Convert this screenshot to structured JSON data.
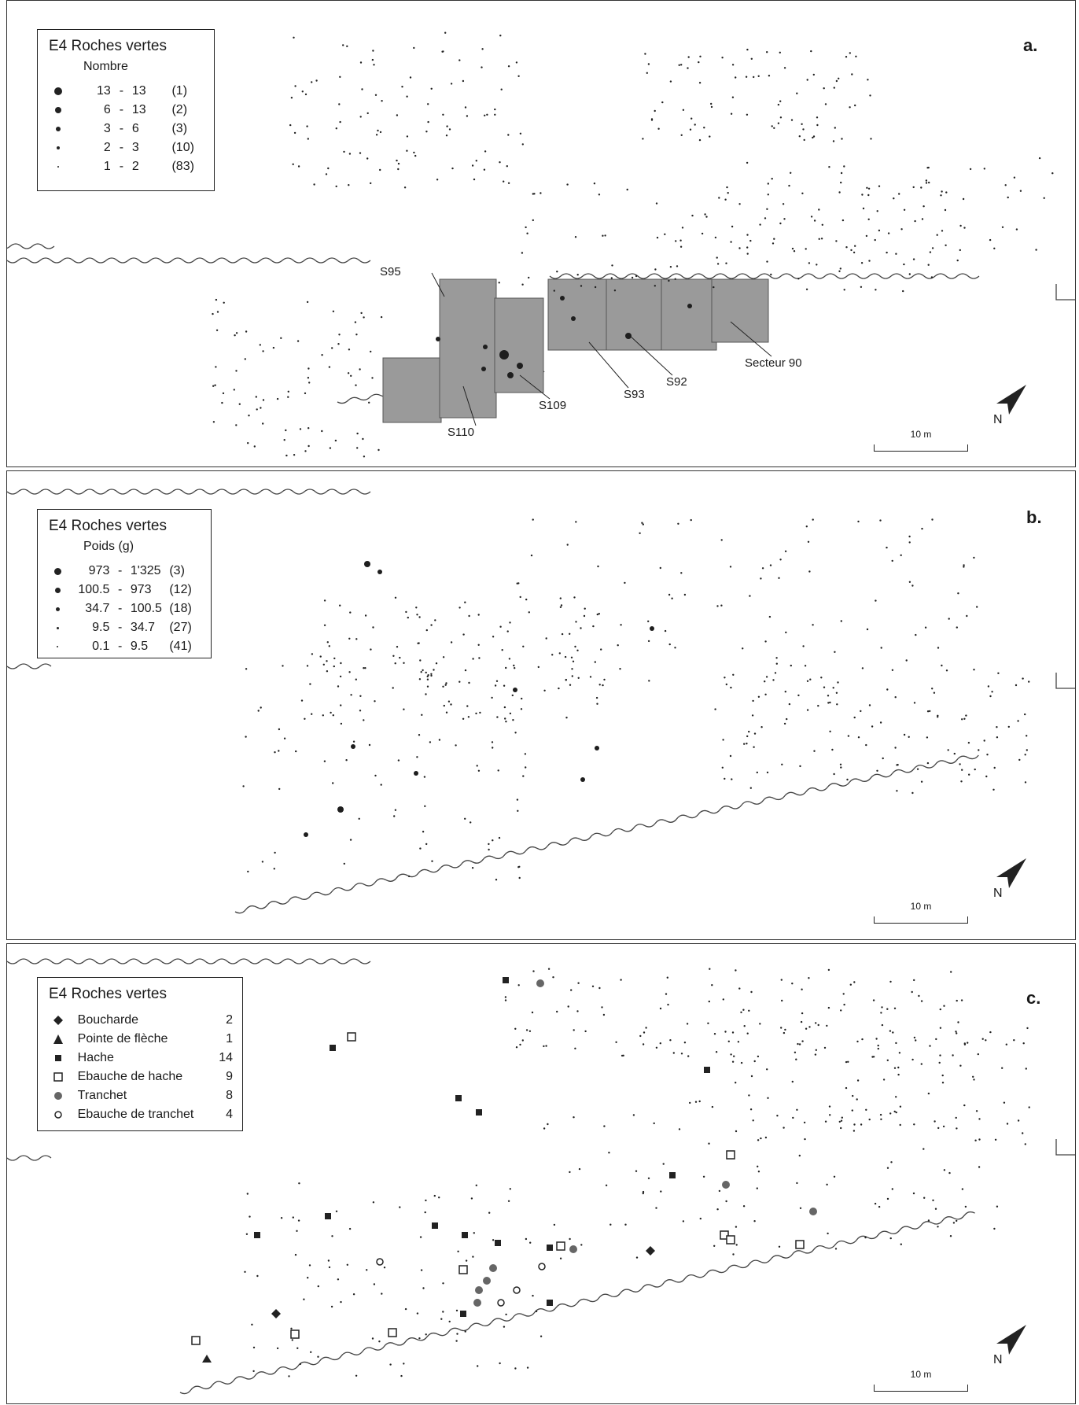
{
  "panel_a": {
    "letter": "a.",
    "legend_title": "E4 Roches vertes",
    "legend_subtitle": "Nombre",
    "classes": [
      {
        "low": "13",
        "high": "13",
        "count": "(1)"
      },
      {
        "low": "6",
        "high": "13",
        "count": "(2)"
      },
      {
        "low": "3",
        "high": "6",
        "count": "(3)"
      },
      {
        "low": "2",
        "high": "3",
        "count": "(10)"
      },
      {
        "low": "1",
        "high": "2",
        "count": "(83)"
      }
    ],
    "labels": [
      "S95",
      "S110",
      "S109",
      "S93",
      "S92",
      "Secteur 90"
    ],
    "north": "N",
    "scale": "10 m"
  },
  "panel_b": {
    "letter": "b.",
    "legend_title": "E4 Roches vertes",
    "legend_subtitle": "Poids (g)",
    "classes": [
      {
        "low": "973",
        "high": "1'325",
        "count": "(3)"
      },
      {
        "low": "100.5",
        "high": "973",
        "count": "(12)"
      },
      {
        "low": "34.7",
        "high": "100.5",
        "count": "(18)"
      },
      {
        "low": "9.5",
        "high": "34.7",
        "count": "(27)"
      },
      {
        "low": "0.1",
        "high": "9.5",
        "count": "(41)"
      }
    ],
    "north": "N",
    "scale": "10 m"
  },
  "panel_c": {
    "letter": "c.",
    "legend_title": "E4 Roches vertes",
    "items": [
      {
        "label": "Boucharde",
        "count": "2",
        "symbol": "diamond"
      },
      {
        "label": "Pointe de flèche",
        "count": "1",
        "symbol": "triangle"
      },
      {
        "label": "Hache",
        "count": "14",
        "symbol": "filled-square"
      },
      {
        "label": "Ebauche de hache",
        "count": "9",
        "symbol": "open-square"
      },
      {
        "label": "Tranchet",
        "count": "8",
        "symbol": "grey-circle"
      },
      {
        "label": "Ebauche de tranchet",
        "count": "4",
        "symbol": "open-circle"
      }
    ],
    "north": "N",
    "scale": "10 m"
  },
  "colors": {
    "zone_fill": "#9a9a9a",
    "dot": "#1e1e1e",
    "frame": "#333333"
  }
}
